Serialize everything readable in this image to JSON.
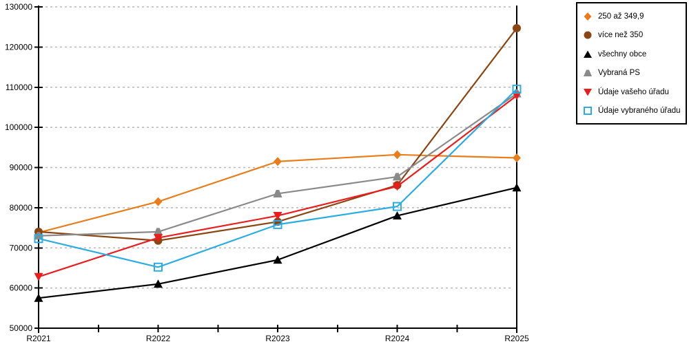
{
  "chart_data": {
    "type": "line",
    "categories": [
      "R2021",
      "R2022",
      "R2023",
      "R2024",
      "R2025"
    ],
    "series": [
      {
        "name": "250 až 349,9",
        "color": "#e87d1a",
        "marker": "diamond",
        "values": [
          73800,
          81500,
          91500,
          93200,
          92400
        ]
      },
      {
        "name": "více než 350",
        "color": "#8b4513",
        "marker": "circle",
        "values": [
          74000,
          71800,
          76500,
          85600,
          124700
        ]
      },
      {
        "name": "všechny obce",
        "color": "#000000",
        "marker": "triangle-up",
        "values": [
          57500,
          61000,
          67000,
          78000,
          85000
        ]
      },
      {
        "name": "Vybraná PS",
        "color": "#8a8a8a",
        "marker": "triangle-up-flat",
        "values": [
          73000,
          74000,
          83500,
          87700,
          108400
        ]
      },
      {
        "name": "Údaje vašeho úřadu",
        "color": "#ea1c1c",
        "marker": "triangle-down",
        "values": [
          62800,
          72500,
          78000,
          85300,
          107900
        ]
      },
      {
        "name": "Údaje vybraného úřadu",
        "color": "#2bace2",
        "marker": "square-open",
        "values": [
          72300,
          65200,
          75800,
          80300,
          109500
        ]
      }
    ],
    "title": "",
    "xlabel": "",
    "ylabel": "",
    "ylim": [
      50000,
      130000
    ],
    "ytick_step": 10000,
    "ytick_labels": [
      "50000",
      "60000",
      "70000",
      "80000",
      "90000",
      "100000",
      "110000",
      "120000",
      "130000"
    ],
    "grid": "horizontal-dashed",
    "gridline_color": "#b8b8b8",
    "axis_color": "#000000",
    "legend_position": "top-right"
  }
}
